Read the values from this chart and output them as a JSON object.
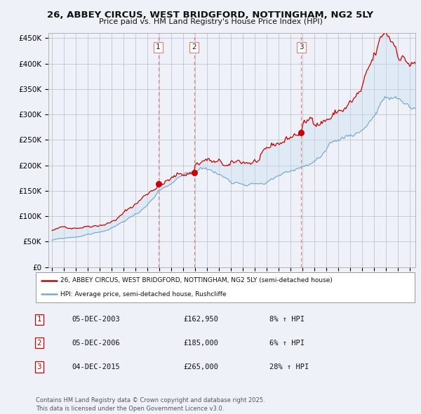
{
  "title": "26, ABBEY CIRCUS, WEST BRIDGFORD, NOTTINGHAM, NG2 5LY",
  "subtitle": "Price paid vs. HM Land Registry's House Price Index (HPI)",
  "ylabel_ticks": [
    "£0",
    "£50K",
    "£100K",
    "£150K",
    "£200K",
    "£250K",
    "£300K",
    "£350K",
    "£400K",
    "£450K"
  ],
  "ytick_values": [
    0,
    50000,
    100000,
    150000,
    200000,
    250000,
    300000,
    350000,
    400000,
    450000
  ],
  "ylim": [
    0,
    460000
  ],
  "xlim_start": 1994.7,
  "xlim_end": 2025.5,
  "sale_dates": [
    2003.92,
    2006.92,
    2015.92
  ],
  "sale_prices": [
    162950,
    185000,
    265000
  ],
  "sale_labels": [
    "1",
    "2",
    "3"
  ],
  "vline_color": "#dd8888",
  "red_line_color": "#cc0000",
  "blue_line_color": "#7aadcf",
  "fill_color": "#c8ddf0",
  "background_color": "#eef2f8",
  "plot_bg_color": "#eef2f8",
  "legend_line1": "26, ABBEY CIRCUS, WEST BRIDGFORD, NOTTINGHAM, NG2 5LY (semi-detached house)",
  "legend_line2": "HPI: Average price, semi-detached house, Rushcliffe",
  "table_rows": [
    [
      "1",
      "05-DEC-2003",
      "£162,950",
      "8% ↑ HPI"
    ],
    [
      "2",
      "05-DEC-2006",
      "£185,000",
      "6% ↑ HPI"
    ],
    [
      "3",
      "04-DEC-2015",
      "£265,000",
      "28% ↑ HPI"
    ]
  ],
  "footnote": "Contains HM Land Registry data © Crown copyright and database right 2025.\nThis data is licensed under the Open Government Licence v3.0."
}
